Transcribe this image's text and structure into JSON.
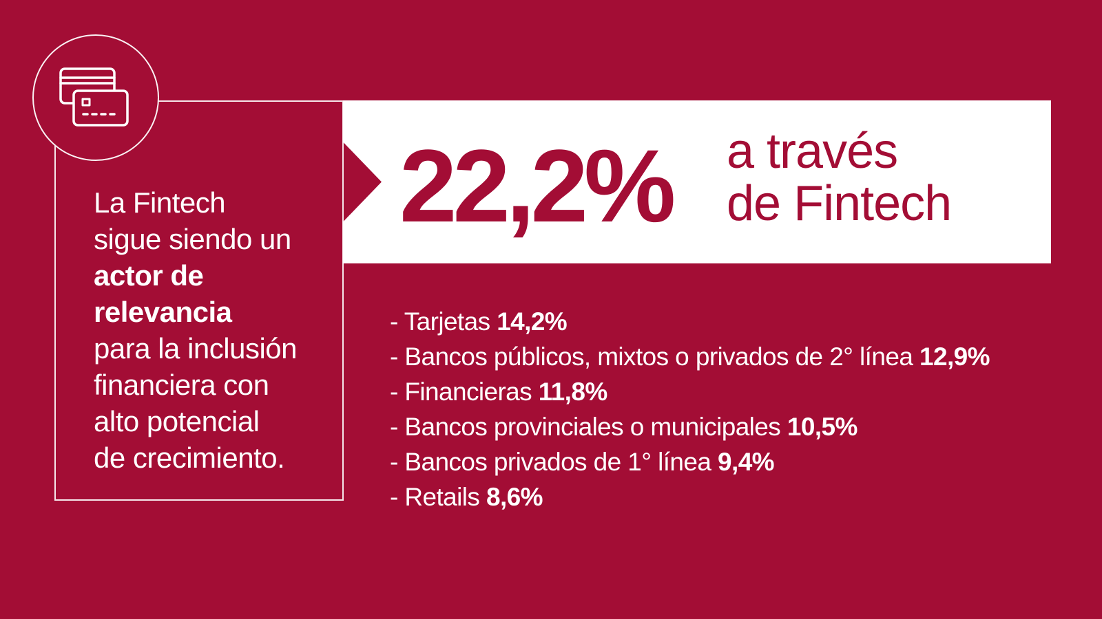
{
  "statement": {
    "lines_before": [
      "La Fintech",
      "sigue siendo un"
    ],
    "bold_lines": [
      "actor de",
      "relevancia"
    ],
    "lines_after": [
      "para la inclusión",
      "financiera con",
      "alto potencial",
      "de crecimiento."
    ]
  },
  "highlight": {
    "value": "22,2%",
    "caption_line1": "a través",
    "caption_line2": "de Fintech"
  },
  "breakdown": [
    {
      "label": "- Tarjetas",
      "value": "14,2%"
    },
    {
      "label": "- Bancos públicos, mixtos o privados de 2° línea",
      "value": "12,9%"
    },
    {
      "label": "- Financieras",
      "value": "11,8%"
    },
    {
      "label": "- Bancos provinciales o municipales",
      "value": "10,5%"
    },
    {
      "label": "- Bancos privados de 1° línea",
      "value": "9,4%"
    },
    {
      "label": "- Retails",
      "value": "8,6%"
    }
  ],
  "icon": "credit-cards-icon",
  "colors": {
    "background": "#a30d35",
    "banner": "#ffffff",
    "text": "#ffffff",
    "accent_text": "#a30d35"
  }
}
